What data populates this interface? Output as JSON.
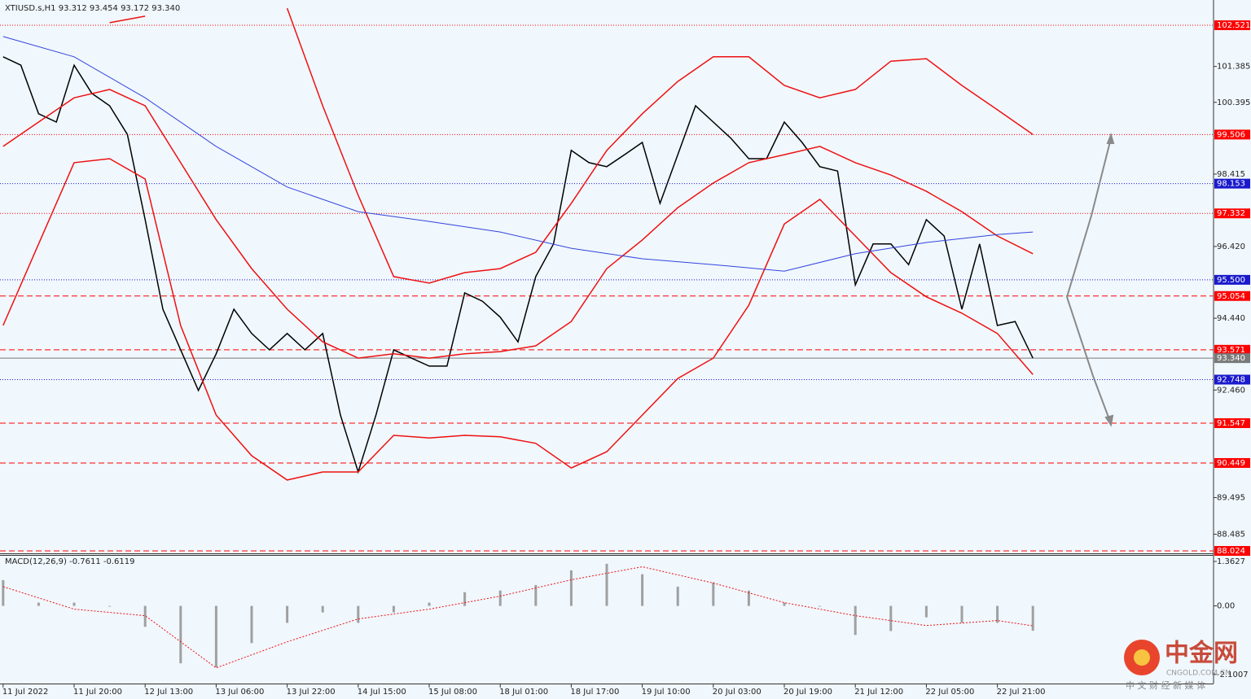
{
  "chart_data": [
    {
      "type": "line",
      "title": "XTIUSD.s,H1  93.312 93.454 93.172 93.340",
      "xlim": [
        -0.7,
        272.7
      ],
      "xticks": [
        {
          "value": 0,
          "label": "11 Jul 2022"
        },
        {
          "value": 16,
          "label": "11 Jul 20:00"
        },
        {
          "value": 32,
          "label": "12 Jul 13:00"
        },
        {
          "value": 48,
          "label": "13 Jul 06:00"
        },
        {
          "value": 64,
          "label": "13 Jul 22:00"
        },
        {
          "value": 80,
          "label": "14 Jul 15:00"
        },
        {
          "value": 96,
          "label": "15 Jul 08:00"
        },
        {
          "value": 112,
          "label": "18 Jul 01:00"
        },
        {
          "value": 128,
          "label": "18 Jul 17:00"
        },
        {
          "value": 144,
          "label": "19 Jul 10:00"
        },
        {
          "value": 160,
          "label": "20 Jul 03:00"
        },
        {
          "value": 176,
          "label": "20 Jul 19:00"
        },
        {
          "value": 192,
          "label": "21 Jul 12:00"
        },
        {
          "value": 208,
          "label": "22 Jul 05:00"
        },
        {
          "value": 224,
          "label": "22 Jul 21:00"
        }
      ],
      "ylim": [
        87.957,
        103.217
      ],
      "yticks": [
        101.385,
        100.395,
        98.415,
        {
          "value": 96.42,
          "label": "96.420"
        },
        {
          "value": 94.44,
          "label": "94.440"
        },
        {
          "value": 92.46,
          "label": "92.460"
        },
        89.495,
        88.485
      ],
      "levels": [
        {
          "value": 102.521,
          "color": "#ff0000",
          "style": "dotted"
        },
        {
          "value": 99.506,
          "color": "#ff0000",
          "style": "dotted"
        },
        {
          "value": 98.153,
          "color": "#1a1acc",
          "style": "dotted"
        },
        {
          "value": 97.332,
          "color": "#ff0000",
          "style": "dotted"
        },
        {
          "value": 95.5,
          "label": "95.500",
          "color": "#1a1acc",
          "style": "dotted"
        },
        {
          "value": 95.054,
          "color": "#ff0000",
          "style": "dashed"
        },
        {
          "value": 93.571,
          "color": "#ff0000",
          "style": "dashed"
        },
        {
          "value": 93.34,
          "label": "93.340",
          "color": "#7a7a7a",
          "style": "solid"
        },
        {
          "value": 92.748,
          "color": "#1a1acc",
          "style": "dotted"
        },
        {
          "value": 91.547,
          "color": "#ff0000",
          "style": "dashed"
        },
        {
          "value": 90.449,
          "color": "#ff0000",
          "style": "dashed"
        },
        {
          "value": 88.024,
          "color": "#ff0000",
          "style": "dashed"
        }
      ],
      "series": [
        {
          "color": "#000000",
          "x": [
            0,
            4,
            8,
            12,
            16,
            20,
            24,
            28,
            32,
            36,
            40,
            44,
            48,
            52,
            56,
            60,
            64,
            68,
            72,
            76,
            80,
            84,
            88,
            92,
            96,
            100,
            104,
            108,
            112,
            116,
            120,
            124,
            128,
            132,
            136,
            140,
            144,
            148,
            152,
            156,
            160,
            164,
            168,
            172,
            176,
            180,
            184,
            188,
            192,
            196,
            200,
            204,
            208,
            212,
            216,
            220,
            224,
            228,
            232
          ],
          "values": [
            101.65,
            101.42,
            100.08,
            99.85,
            101.42,
            100.64,
            100.3,
            99.51,
            97.16,
            94.69,
            93.57,
            92.45,
            93.46,
            94.69,
            94.02,
            93.57,
            94.02,
            93.57,
            94.02,
            91.77,
            90.2,
            91.77,
            93.57,
            93.34,
            93.12,
            93.12,
            95.14,
            94.91,
            94.47,
            93.79,
            95.59,
            96.49,
            99.07,
            98.73,
            98.62,
            98.95,
            99.29,
            97.61,
            98.95,
            100.3,
            99.85,
            99.4,
            98.84,
            98.84,
            99.85,
            99.29,
            98.62,
            98.5,
            95.36,
            96.49,
            96.49,
            95.92,
            97.16,
            96.71,
            94.69,
            96.49,
            94.24,
            94.35,
            93.34
          ]
        },
        {
          "color": "#ee1111",
          "x": [
            0,
            8,
            16,
            24,
            32,
            40,
            48,
            56,
            64,
            72,
            80,
            88,
            96,
            104,
            112,
            120,
            128,
            136,
            144,
            152,
            160,
            168,
            176,
            184,
            192,
            200,
            208,
            216,
            224,
            232
          ],
          "values": [
            null,
            null,
            null,
            102.59,
            102.77,
            null,
            null,
            null,
            102.99,
            100.3,
            97.83,
            95.59,
            95.41,
            95.7,
            95.81,
            96.26,
            97.61,
            99.07,
            100.08,
            100.97,
            101.65,
            101.65,
            100.86,
            100.52,
            100.75,
            101.53,
            101.6,
            100.86,
            100.19,
            99.51
          ]
        },
        {
          "color": "#ee1111",
          "x": [
            0,
            8,
            16,
            24,
            32,
            40,
            48,
            56,
            64,
            72,
            80,
            88,
            96,
            104,
            112,
            120,
            128,
            136,
            144,
            152,
            160,
            168,
            176,
            184,
            192,
            200,
            208,
            216,
            224,
            232
          ],
          "values": [
            99.18,
            99.85,
            100.52,
            100.75,
            100.3,
            98.73,
            97.16,
            95.81,
            94.69,
            93.79,
            93.34,
            93.46,
            93.34,
            93.46,
            93.52,
            93.68,
            94.35,
            95.81,
            96.6,
            97.49,
            98.17,
            98.73,
            98.95,
            99.18,
            98.73,
            98.39,
            97.94,
            97.38,
            96.71,
            96.22
          ]
        },
        {
          "color": "#ee1111",
          "x": [
            0,
            8,
            16,
            24,
            32,
            40,
            48,
            56,
            64,
            72,
            80,
            88,
            96,
            104,
            112,
            120,
            128,
            136,
            144,
            152,
            160,
            168,
            176,
            184,
            192,
            200,
            208,
            216,
            224,
            232
          ],
          "values": [
            94.24,
            96.49,
            98.73,
            98.84,
            98.28,
            94.24,
            91.77,
            90.65,
            89.98,
            90.2,
            90.2,
            91.21,
            91.14,
            91.21,
            91.17,
            90.99,
            90.31,
            90.76,
            91.77,
            92.78,
            93.34,
            94.8,
            97.04,
            97.72,
            96.71,
            95.7,
            95.03,
            94.58,
            94.02,
            92.89
          ]
        },
        {
          "color": "#3344dd",
          "x": [
            0,
            16,
            32,
            48,
            64,
            80,
            96,
            112,
            128,
            144,
            160,
            176,
            192,
            208,
            224,
            232
          ],
          "values": [
            102.21,
            101.65,
            100.52,
            99.18,
            98.06,
            97.38,
            97.11,
            96.82,
            96.37,
            96.08,
            95.92,
            95.74,
            96.22,
            96.53,
            96.75,
            96.82
          ]
        }
      ]
    },
    {
      "type": "bar",
      "title": "MACD(12,26,9) -0.7611 -0.6119",
      "xlim": [
        -0.7,
        272.7
      ],
      "ylim": [
        -2.379,
        1.536
      ],
      "yticks": [
        1.3627,
        {
          "value": 0,
          "label": "0.00"
        },
        -2.1007
      ],
      "x": [
        0,
        8,
        16,
        24,
        32,
        40,
        48,
        56,
        64,
        72,
        80,
        88,
        96,
        104,
        112,
        120,
        128,
        136,
        144,
        152,
        160,
        168,
        176,
        184,
        192,
        200,
        208,
        216,
        224,
        232
      ],
      "values": [
        0.79,
        0.1,
        0.1,
        -0.02,
        -0.64,
        -1.76,
        -1.88,
        -1.14,
        -0.52,
        -0.2,
        -0.52,
        -0.2,
        0.1,
        0.42,
        0.47,
        0.64,
        1.09,
        1.29,
        0.97,
        0.59,
        0.72,
        0.47,
        0.1,
        -0.02,
        -0.89,
        -0.77,
        -0.35,
        -0.52,
        -0.52,
        -0.7611
      ],
      "color": "#a0a0a0",
      "signal": {
        "color": "#ee1111",
        "x": [
          0,
          16,
          32,
          48,
          64,
          80,
          96,
          112,
          128,
          144,
          160,
          176,
          192,
          208,
          224,
          232
        ],
        "values": [
          0.59,
          -0.1,
          -0.3,
          -1.9,
          -1.1,
          -0.4,
          -0.1,
          0.3,
          0.8,
          1.2,
          0.7,
          0.1,
          -0.3,
          -0.6,
          -0.45,
          -0.6119
        ]
      }
    }
  ],
  "watermark": {
    "brand": "中金网",
    "site": "CNGOLD.COM.CN",
    "slogan": "中 文 财 经 新 媒 体"
  }
}
